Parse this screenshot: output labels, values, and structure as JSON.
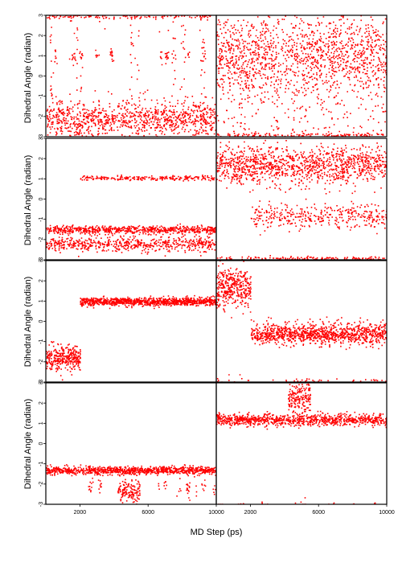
{
  "chart_data": {
    "type": "scatter",
    "layout": "4 rows x 2 columns, shared x-axis, panels abutting",
    "xlabel": "MD Step (ps)",
    "ylabel": "Dihedral Angle (radian)",
    "xlim": [
      0,
      10000
    ],
    "ylim": [
      -3,
      3
    ],
    "x_ticks": [
      2000,
      6000,
      10000
    ],
    "y_ticks": [
      -3,
      -2,
      -1,
      0,
      1,
      2,
      3
    ],
    "marker_color": "#ff0000",
    "grid": false,
    "panels": [
      {
        "row": 1,
        "col": 1,
        "points_per_band": 1400,
        "bands": [
          {
            "x": [
              0,
              10000
            ],
            "center": -2.1,
            "spread": 0.9,
            "weight": 0.72
          },
          {
            "x": [
              0,
              10000
            ],
            "center": 3.0,
            "spread": 0.15,
            "weight": 0.12
          },
          {
            "x": [
              0,
              10000
            ],
            "center": 1.0,
            "spread": 0.4,
            "weight": 0.06,
            "clustered": true
          },
          {
            "x": [
              0,
              10000
            ],
            "center": 0.0,
            "spread": 3.0,
            "weight": 0.1,
            "clustered": true
          }
        ]
      },
      {
        "row": 1,
        "col": 2,
        "points_per_band": 1700,
        "bands": [
          {
            "x": [
              0,
              10000
            ],
            "center": 1.0,
            "spread": 2.0,
            "weight": 0.7
          },
          {
            "x": [
              0,
              10000
            ],
            "center": 0.0,
            "spread": 3.0,
            "weight": 0.22
          },
          {
            "x": [
              0,
              10000
            ],
            "center": -2.9,
            "spread": 0.1,
            "weight": 0.08
          }
        ]
      },
      {
        "row": 2,
        "col": 1,
        "points_per_band": 1500,
        "bands": [
          {
            "x": [
              0,
              10000
            ],
            "center": -1.5,
            "spread": 0.2,
            "weight": 0.45
          },
          {
            "x": [
              0,
              10000
            ],
            "center": -2.2,
            "spread": 0.35,
            "weight": 0.4
          },
          {
            "x": [
              2000,
              10000
            ],
            "center": 1.05,
            "spread": 0.12,
            "weight": 0.15
          }
        ]
      },
      {
        "row": 2,
        "col": 2,
        "points_per_band": 1700,
        "bands": [
          {
            "x": [
              0,
              10000
            ],
            "center": 1.7,
            "spread": 0.9,
            "weight": 0.7
          },
          {
            "x": [
              2000,
              10000
            ],
            "center": -0.8,
            "spread": 0.6,
            "weight": 0.22
          },
          {
            "x": [
              0,
              10000
            ],
            "center": -2.9,
            "spread": 0.1,
            "weight": 0.08
          }
        ]
      },
      {
        "row": 3,
        "col": 1,
        "points_per_band": 1300,
        "bands": [
          {
            "x": [
              0,
              2000
            ],
            "center": -1.8,
            "spread": 0.6,
            "weight": 0.25
          },
          {
            "x": [
              2000,
              10000
            ],
            "center": 1.0,
            "spread": 0.2,
            "weight": 0.75
          }
        ]
      },
      {
        "row": 3,
        "col": 2,
        "points_per_band": 1500,
        "bands": [
          {
            "x": [
              0,
              2000
            ],
            "center": 1.7,
            "spread": 1.0,
            "weight": 0.25
          },
          {
            "x": [
              2000,
              10000
            ],
            "center": -0.6,
            "spread": 0.5,
            "weight": 0.72
          },
          {
            "x": [
              0,
              10000
            ],
            "center": -2.9,
            "spread": 0.1,
            "weight": 0.03
          }
        ]
      },
      {
        "row": 4,
        "col": 1,
        "points_per_band": 1200,
        "bands": [
          {
            "x": [
              0,
              10000
            ],
            "center": -1.3,
            "spread": 0.2,
            "weight": 0.82
          },
          {
            "x": [
              4200,
              5500
            ],
            "center": -2.3,
            "spread": 0.6,
            "weight": 0.12
          },
          {
            "x": [
              0,
              10000
            ],
            "center": -2.2,
            "spread": 0.5,
            "weight": 0.06,
            "clustered": true
          }
        ]
      },
      {
        "row": 4,
        "col": 2,
        "points_per_band": 1200,
        "bands": [
          {
            "x": [
              0,
              10000
            ],
            "center": 1.2,
            "spread": 0.3,
            "weight": 0.78
          },
          {
            "x": [
              4200,
              5500
            ],
            "center": 2.3,
            "spread": 0.8,
            "weight": 0.15
          },
          {
            "x": [
              0,
              10000
            ],
            "center": -3.0,
            "spread": 0.1,
            "weight": 0.07,
            "clustered": true
          }
        ]
      }
    ]
  }
}
